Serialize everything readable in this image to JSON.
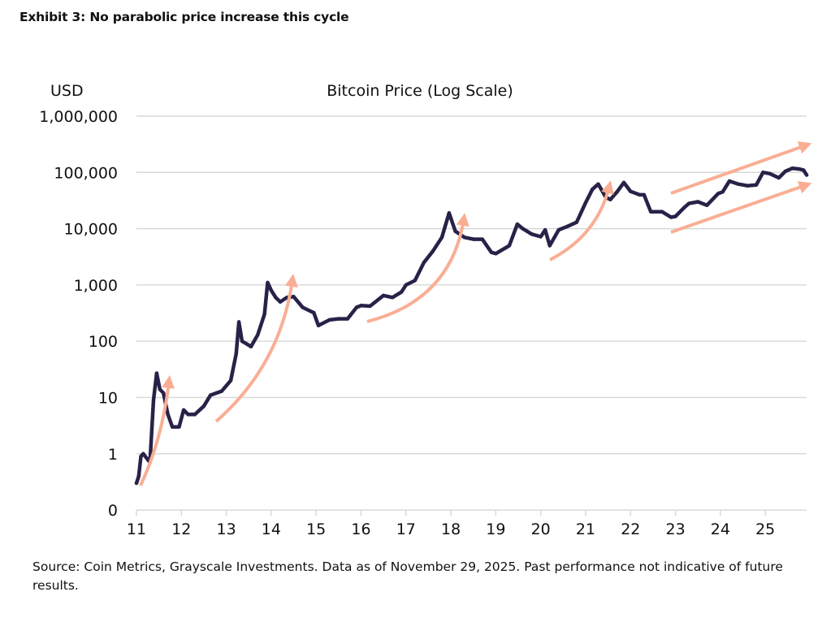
{
  "exhibit_title": "Exhibit 3: No parabolic price increase this cycle",
  "source_note": "Source: Coin Metrics, Grayscale Investments. Data as of November 29, 2025. Past performance not indicative of future results.",
  "chart_data": {
    "type": "line",
    "title": "Bitcoin Price (Log Scale)",
    "ylabel": "USD",
    "xlabel": "",
    "yscale": "log",
    "ylim": [
      0.1,
      1000000
    ],
    "xlim": [
      2011,
      2025.92
    ],
    "grid": "horizontal",
    "ytick_values": [
      0.1,
      1,
      10,
      100,
      1000,
      10000,
      100000,
      1000000
    ],
    "ytick_labels": [
      "0",
      "1",
      "10",
      "100",
      "1,000",
      "10,000",
      "100,000",
      "1,000,000"
    ],
    "xtick_values": [
      2011,
      2012,
      2013,
      2014,
      2015,
      2016,
      2017,
      2018,
      2019,
      2020,
      2021,
      2022,
      2023,
      2024,
      2025
    ],
    "xtick_labels": [
      "11",
      "12",
      "13",
      "14",
      "15",
      "16",
      "17",
      "18",
      "19",
      "20",
      "21",
      "22",
      "23",
      "24",
      "25"
    ],
    "colors": {
      "series": "#2a2148",
      "annotation_arrows": "#f9ae94",
      "grid": "#d9d9d9"
    },
    "annotations": "six salmon arrows marking parabolic rallies in past cycles and a linear channel in the current cycle",
    "series": [
      {
        "x": [
          2011.0,
          2011.05,
          2011.1,
          2011.15,
          2011.3,
          2011.38,
          2011.45,
          2011.52,
          2011.6,
          2011.7,
          2011.8,
          2011.95,
          2012.05,
          2012.15,
          2012.3,
          2012.5,
          2012.65,
          2012.9,
          2013.1,
          2013.22,
          2013.28,
          2013.35,
          2013.45,
          2013.55,
          2013.7,
          2013.85,
          2013.92,
          2014.0,
          2014.1,
          2014.2,
          2014.35,
          2014.5,
          2014.7,
          2014.95,
          2015.05,
          2015.3,
          2015.5,
          2015.7,
          2015.9,
          2016.0,
          2016.2,
          2016.5,
          2016.7,
          2016.9,
          2017.0,
          2017.2,
          2017.4,
          2017.6,
          2017.8,
          2017.96,
          2018.1,
          2018.3,
          2018.5,
          2018.7,
          2018.9,
          2019.0,
          2019.3,
          2019.48,
          2019.6,
          2019.8,
          2020.0,
          2020.1,
          2020.2,
          2020.4,
          2020.6,
          2020.8,
          2021.0,
          2021.15,
          2021.28,
          2021.45,
          2021.55,
          2021.7,
          2021.85,
          2022.0,
          2022.2,
          2022.3,
          2022.45,
          2022.7,
          2022.9,
          2023.0,
          2023.2,
          2023.3,
          2023.5,
          2023.7,
          2023.95,
          2024.05,
          2024.2,
          2024.4,
          2024.6,
          2024.8,
          2024.95,
          2025.1,
          2025.3,
          2025.45,
          2025.6,
          2025.75,
          2025.85,
          2025.92
        ],
        "y": [
          0.3,
          0.4,
          0.9,
          1.0,
          0.7,
          9,
          27,
          14,
          12,
          5,
          3,
          3,
          6,
          5,
          5,
          7,
          11,
          13,
          20,
          60,
          220,
          100,
          90,
          80,
          130,
          300,
          1100,
          800,
          600,
          500,
          600,
          620,
          400,
          320,
          190,
          240,
          250,
          250,
          400,
          430,
          420,
          650,
          600,
          750,
          1000,
          1200,
          2500,
          4000,
          7000,
          19000,
          9000,
          7000,
          6500,
          6500,
          3800,
          3600,
          5000,
          12000,
          10000,
          8000,
          7200,
          9500,
          5000,
          9500,
          11000,
          13000,
          29000,
          50000,
          62000,
          36000,
          33000,
          45000,
          66000,
          46000,
          40000,
          40000,
          20000,
          20000,
          16000,
          16500,
          24000,
          28000,
          30000,
          26000,
          42000,
          45000,
          70000,
          62000,
          58000,
          60000,
          100000,
          95000,
          80000,
          105000,
          118000,
          115000,
          110000,
          90000
        ]
      }
    ]
  }
}
